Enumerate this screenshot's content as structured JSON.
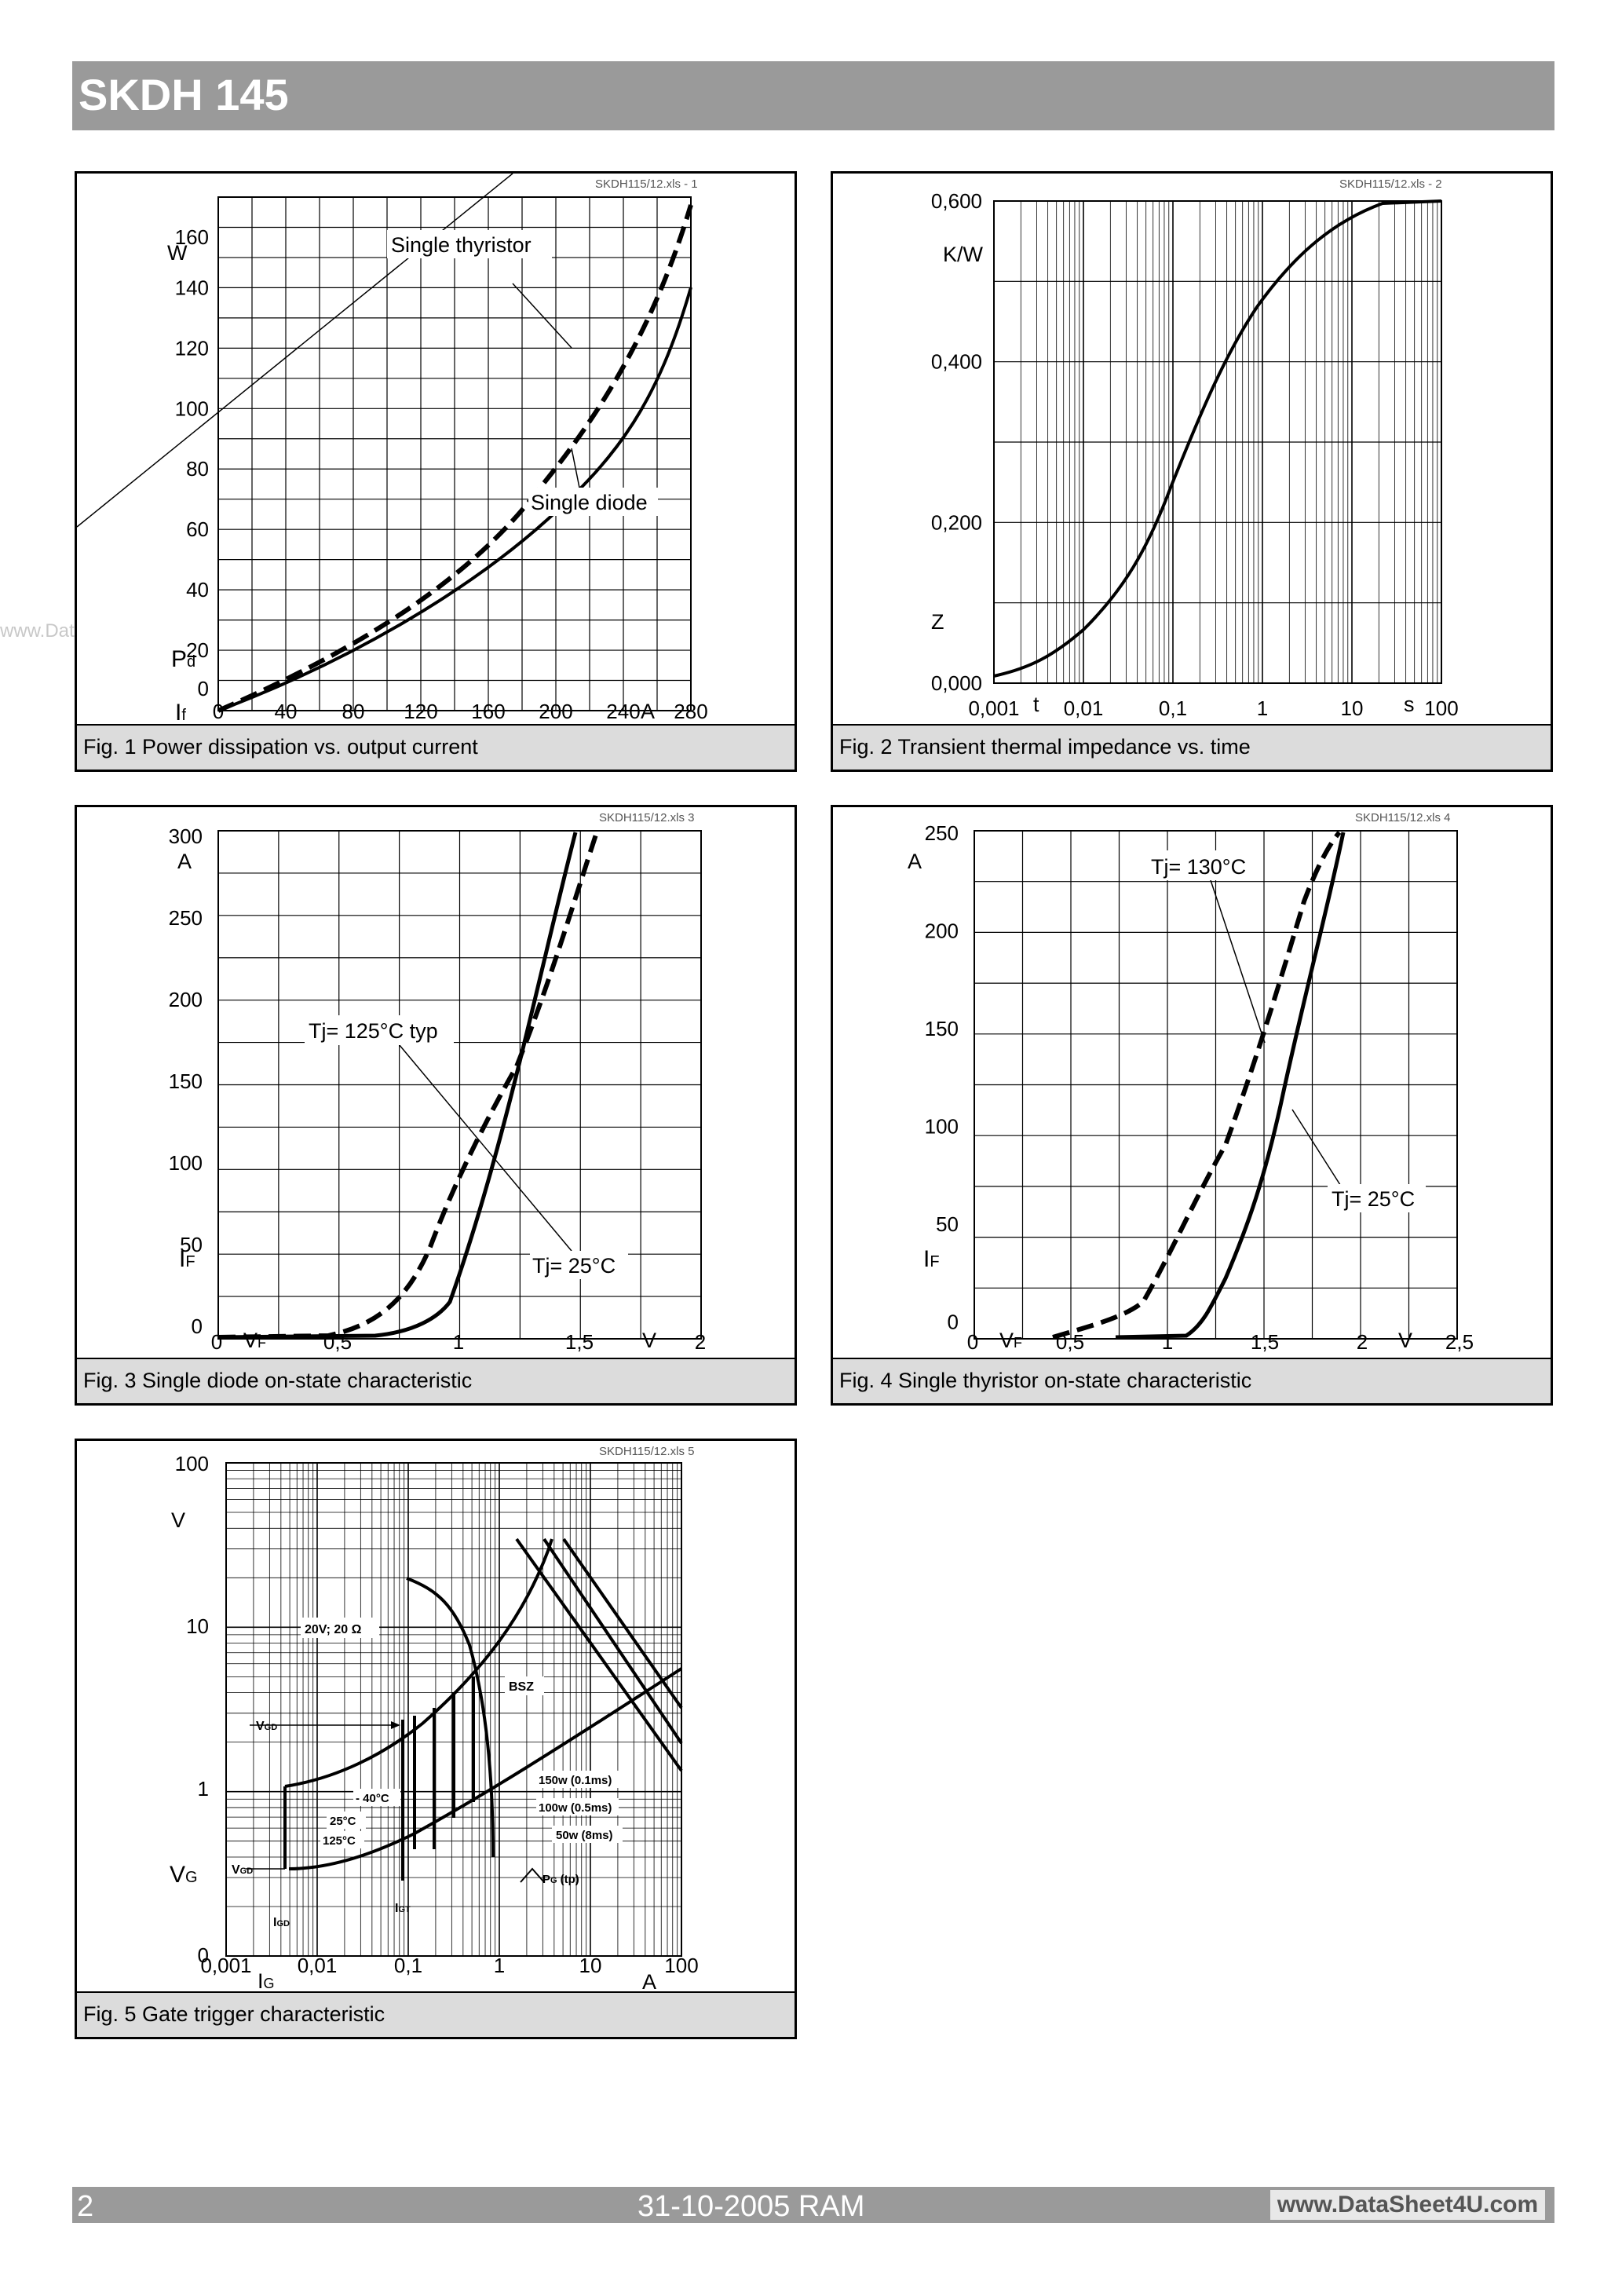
{
  "header": {
    "title": "SKDH 145"
  },
  "watermark": "www.DataSheet4U.com",
  "footer": {
    "page": "2",
    "date": "31-10-2005  RAM",
    "website": "www.DataSheet4U.com"
  },
  "figures": {
    "fig1": {
      "caption": "Fig. 1 Power dissipation vs. output current",
      "code": "SKDH115/12.xls - 1",
      "y_unit": "W",
      "y_symbol": "P",
      "y_sub": "d",
      "x_symbol": "I",
      "x_sub": "f",
      "x_unit": "A",
      "y_ticks": [
        "160",
        "140",
        "120",
        "100",
        "80",
        "60",
        "40",
        "20",
        "0"
      ],
      "x_ticks": [
        "0",
        "40",
        "80",
        "120",
        "160",
        "200",
        "240",
        "280"
      ],
      "label_thyristor": "Single thyristor",
      "label_diode": "Single diode"
    },
    "fig2": {
      "caption": "Fig. 2 Transient thermal impedance vs. time",
      "code": "SKDH115/12.xls - 2",
      "y_unit": "K/W",
      "y_symbol": "Z",
      "x_symbol": "t",
      "x_unit": "s",
      "y_ticks": [
        "0,600",
        "0,400",
        "0,200",
        "0,000"
      ],
      "x_ticks": [
        "0,001",
        "0,01",
        "0,1",
        "1",
        "10",
        "100"
      ]
    },
    "fig3": {
      "caption": "Fig. 3 Single diode on-state characteristic",
      "code": "SKDH115/12.xls 3",
      "y_unit": "A",
      "y_symbol": "I",
      "y_sub": "F",
      "x_symbol": "V",
      "x_sub": "F",
      "x_unit": "V",
      "y_ticks": [
        "300",
        "250",
        "200",
        "150",
        "100",
        "50",
        "0"
      ],
      "x_ticks": [
        "0",
        "0,5",
        "1",
        "1,5",
        "2"
      ],
      "label_hot": "Tj= 125°C typ",
      "label_cold": "Tj= 25°C"
    },
    "fig4": {
      "caption": "Fig. 4 Single thyristor on-state characteristic",
      "code": "SKDH115/12.xls 4",
      "y_unit": "A",
      "y_symbol": "I",
      "y_sub": "F",
      "x_symbol": "V",
      "x_sub": "F",
      "x_unit": "V",
      "y_ticks": [
        "250",
        "200",
        "150",
        "100",
        "50",
        "0"
      ],
      "x_ticks": [
        "0",
        "0,5",
        "1",
        "1,5",
        "2",
        "2,5"
      ],
      "label_hot": "Tj= 130°C",
      "label_cold": "Tj= 25°C"
    },
    "fig5": {
      "caption": "Fig. 5 Gate trigger characteristic",
      "code": "SKDH115/12.xls 5",
      "y_unit": "V",
      "y_symbol": "V",
      "y_sub": "G",
      "x_symbol": "I",
      "x_sub": "G",
      "x_unit": "A",
      "y_ticks": [
        "100",
        "10",
        "1",
        "0"
      ],
      "x_ticks": [
        "0,001",
        "0,01",
        "0,1",
        "1",
        "10",
        "100"
      ],
      "label_20v": "20V; 20 Ω",
      "label_bsz": "BSZ",
      "label_vgd": "V",
      "label_vgd_sub": "GD",
      "label_igd": "I",
      "label_igd_sub": "GD",
      "label_igt": "I",
      "label_igt_sub": "GT",
      "label_m40": "- 40°C",
      "label_25": "25°C",
      "label_125": "125°C",
      "label_150w": "150w (0.1ms)",
      "label_100w": "100w (0.5ms)",
      "label_50w": "50w (8ms)",
      "label_pg": "P",
      "label_pg_sub": "G",
      "label_pg_tp": "(tp)"
    }
  }
}
